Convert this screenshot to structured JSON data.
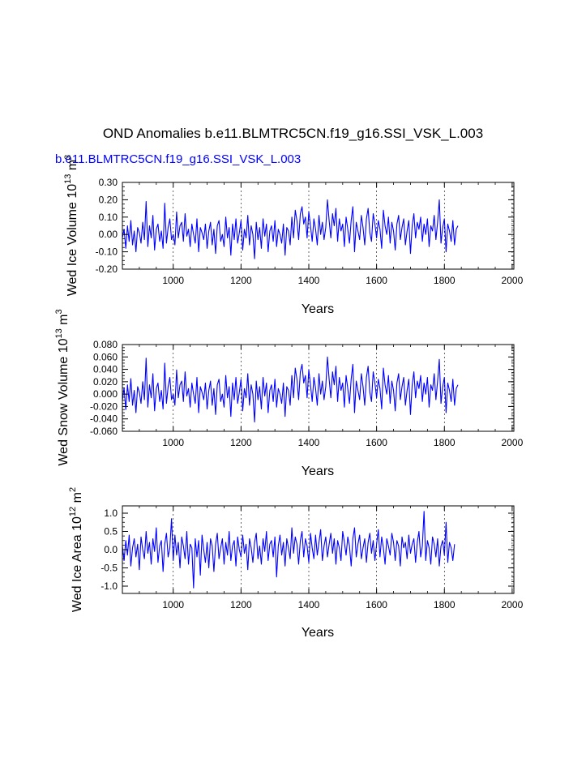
{
  "figure": {
    "title": "OND Anomalies b.e11.BLMTRC5CN.f19_g16.SSI_VSK_L.003",
    "subtitle": "b.e11.BLMTRC5CN.f19_g16.SSI_VSK_L.003",
    "line_color": "#0000ff"
  },
  "chart_data": [
    {
      "type": "line",
      "title": "",
      "xlabel": "Years",
      "ylabel": {
        "base": "Wed Ice Volume 10",
        "exp1": "13",
        "unit": " m",
        "exp2": "3"
      },
      "xlim": [
        850,
        2005
      ],
      "ylim": [
        -0.2,
        0.3
      ],
      "xticks": [
        1000,
        1200,
        1400,
        1600,
        1800,
        2000
      ],
      "xtick_labels": [
        "1000",
        "1200",
        "1400",
        "1600",
        "1800",
        "2000"
      ],
      "yticks": [
        -0.2,
        -0.1,
        0.0,
        0.1,
        0.2,
        0.3
      ],
      "ytick_labels": [
        "-0.20",
        "-0.10",
        "0.00",
        "0.10",
        "0.20",
        "0.30"
      ],
      "grid": "vertical dashed at major x ticks",
      "series": [
        {
          "name": "Wed Ice Volume",
          "x_start": 850,
          "x_step": 5,
          "values": [
            -0.02,
            0.03,
            -0.08,
            0.05,
            -0.04,
            0.08,
            -0.06,
            0.02,
            -0.1,
            0.04,
            0.01,
            -0.05,
            0.07,
            -0.03,
            0.19,
            -0.07,
            0.05,
            -0.02,
            0.11,
            -0.09,
            0.03,
            0.06,
            -0.04,
            0.02,
            -0.08,
            0.18,
            -0.05,
            0.04,
            0.09,
            -0.03,
            0.0,
            -0.06,
            0.13,
            -0.02,
            0.05,
            0.07,
            -0.04,
            0.12,
            -0.01,
            0.03,
            -0.07,
            0.06,
            0.0,
            -0.05,
            0.09,
            -0.1,
            0.04,
            0.01,
            -0.03,
            0.06,
            -0.08,
            0.02,
            0.07,
            -0.06,
            0.03,
            -0.11,
            0.05,
            0.08,
            -0.04,
            0.0,
            -0.07,
            0.1,
            -0.02,
            0.04,
            -0.12,
            0.06,
            -0.03,
            0.09,
            -0.05,
            0.01,
            0.08,
            -0.09,
            0.03,
            -0.02,
            0.11,
            -0.06,
            0.05,
            0.0,
            -0.14,
            0.07,
            -0.03,
            0.04,
            -0.08,
            0.09,
            -0.01,
            0.06,
            -0.1,
            0.02,
            0.05,
            -0.04,
            0.08,
            -0.07,
            0.03,
            0.0,
            -0.05,
            0.06,
            -0.12,
            0.04,
            0.02,
            -0.06,
            0.1,
            -0.02,
            0.14,
            0.08,
            -0.03,
            0.12,
            0.16,
            0.06,
            0.1,
            -0.02,
            0.13,
            0.05,
            -0.04,
            0.09,
            0.03,
            -0.06,
            0.11,
            0.0,
            0.07,
            -0.03,
            0.04,
            0.2,
            0.08,
            -0.02,
            0.12,
            0.05,
            0.15,
            -0.04,
            0.09,
            0.02,
            0.06,
            -0.07,
            0.1,
            0.03,
            -0.05,
            0.08,
            0.16,
            -0.1,
            0.07,
            0.02,
            -0.03,
            0.11,
            0.04,
            -0.06,
            0.09,
            0.15,
            0.01,
            -0.04,
            0.12,
            0.06,
            -0.02,
            0.08,
            0.03,
            -0.08,
            0.14,
            0.05,
            0.0,
            0.1,
            -0.05,
            0.07,
            0.02,
            -0.09,
            0.06,
            0.11,
            -0.03,
            0.04,
            0.09,
            -0.06,
            0.02,
            0.08,
            -0.11,
            0.05,
            0.12,
            -0.02,
            0.07,
            0.03,
            0.1,
            -0.04,
            0.06,
            0.0,
            0.09,
            -0.07,
            0.05,
            0.02,
            0.11,
            -0.03,
            0.07,
            0.2,
            -0.05,
            0.04,
            0.09,
            -0.1,
            0.06,
            0.02,
            -0.04,
            0.08,
            -0.06,
            0.03,
            0.05
          ]
        }
      ]
    },
    {
      "type": "line",
      "title": "",
      "xlabel": "Years",
      "ylabel": {
        "base": "Wed Snow Volume 10",
        "exp1": "13",
        "unit": " m",
        "exp2": "3"
      },
      "xlim": [
        850,
        2005
      ],
      "ylim": [
        -0.06,
        0.08
      ],
      "xticks": [
        1000,
        1200,
        1400,
        1600,
        1800,
        2000
      ],
      "xtick_labels": [
        "1000",
        "1200",
        "1400",
        "1600",
        "1800",
        "2000"
      ],
      "yticks": [
        -0.06,
        -0.04,
        -0.02,
        0.0,
        0.02,
        0.04,
        0.06,
        0.08
      ],
      "ytick_labels": [
        "-0.060",
        "-0.040",
        "-0.020",
        "0.000",
        "0.020",
        "0.040",
        "0.060",
        "0.080"
      ],
      "grid": "vertical dashed at major x ticks",
      "series": [
        {
          "name": "Wed Snow Volume",
          "x_start": 850,
          "x_step": 5,
          "values": [
            -0.01,
            0.01,
            -0.025,
            0.015,
            -0.012,
            0.025,
            -0.018,
            0.006,
            -0.03,
            0.012,
            0.003,
            -0.015,
            0.02,
            -0.009,
            0.058,
            -0.021,
            0.015,
            -0.006,
            0.033,
            -0.027,
            0.009,
            0.018,
            -0.012,
            0.006,
            -0.024,
            0.05,
            -0.015,
            0.012,
            0.027,
            -0.009,
            0.0,
            -0.018,
            0.039,
            -0.006,
            0.015,
            0.021,
            -0.012,
            0.036,
            -0.003,
            0.009,
            -0.021,
            0.018,
            0.0,
            -0.015,
            0.027,
            -0.03,
            0.012,
            0.003,
            -0.009,
            0.018,
            -0.024,
            0.006,
            0.021,
            -0.018,
            0.009,
            -0.033,
            0.015,
            0.024,
            -0.012,
            0.0,
            -0.021,
            0.03,
            -0.006,
            0.012,
            -0.036,
            0.018,
            -0.009,
            0.027,
            -0.015,
            0.003,
            0.024,
            -0.027,
            0.009,
            -0.006,
            0.033,
            -0.018,
            0.015,
            0.0,
            -0.045,
            0.021,
            -0.009,
            0.012,
            -0.024,
            0.027,
            -0.003,
            0.018,
            -0.03,
            0.006,
            0.015,
            -0.012,
            0.024,
            -0.021,
            0.009,
            0.0,
            -0.015,
            0.018,
            -0.036,
            0.012,
            0.006,
            -0.018,
            0.03,
            -0.006,
            0.042,
            0.024,
            -0.009,
            0.036,
            0.048,
            0.018,
            0.03,
            -0.006,
            0.039,
            0.015,
            -0.012,
            0.027,
            0.009,
            -0.018,
            0.033,
            0.0,
            0.021,
            -0.009,
            0.012,
            0.06,
            0.024,
            -0.006,
            0.036,
            0.015,
            0.045,
            -0.012,
            0.027,
            0.006,
            0.018,
            -0.021,
            0.03,
            0.009,
            -0.015,
            0.024,
            0.048,
            -0.03,
            0.021,
            0.006,
            -0.009,
            0.033,
            0.012,
            -0.018,
            0.027,
            0.045,
            0.003,
            -0.012,
            0.036,
            0.018,
            -0.006,
            0.024,
            0.009,
            -0.024,
            0.042,
            0.015,
            0.0,
            0.03,
            -0.015,
            0.021,
            0.006,
            -0.027,
            0.018,
            0.033,
            -0.009,
            0.012,
            0.027,
            -0.018,
            0.006,
            0.024,
            -0.033,
            0.015,
            0.036,
            -0.006,
            0.021,
            0.009,
            0.03,
            -0.012,
            0.018,
            0.0,
            0.027,
            -0.021,
            0.015,
            0.006,
            0.033,
            -0.009,
            0.021,
            0.056,
            -0.015,
            0.012,
            0.027,
            -0.03,
            0.018,
            0.006,
            -0.012,
            0.024,
            -0.018,
            0.009,
            0.015
          ]
        }
      ]
    },
    {
      "type": "line",
      "title": "",
      "xlabel": "Years",
      "ylabel": {
        "base": "Wed Ice Area 10",
        "exp1": "12",
        "unit": " m",
        "exp2": "2"
      },
      "xlim": [
        850,
        2005
      ],
      "ylim": [
        -1.2,
        1.2
      ],
      "xticks": [
        1000,
        1200,
        1400,
        1600,
        1800,
        2000
      ],
      "xtick_labels": [
        "1000",
        "1200",
        "1400",
        "1600",
        "1800",
        "2000"
      ],
      "yticks": [
        -1.0,
        -0.5,
        0.0,
        0.5,
        1.0
      ],
      "ytick_labels": [
        "-1.0",
        "-0.5",
        "0.0",
        "0.5",
        "1.0"
      ],
      "grid": "vertical dashed at major x ticks",
      "series": [
        {
          "name": "Wed Ice Area",
          "x_start": 850,
          "x_step": 5,
          "values": [
            0.1,
            -0.3,
            0.25,
            -0.15,
            0.4,
            -0.45,
            0.05,
            0.3,
            -0.2,
            0.15,
            -0.55,
            0.35,
            0.0,
            -0.25,
            0.5,
            -0.1,
            0.2,
            -0.4,
            0.3,
            -0.05,
            0.6,
            -0.35,
            0.1,
            0.25,
            -0.6,
            0.15,
            0.45,
            -0.2,
            0.05,
            0.85,
            -0.3,
            0.4,
            -0.15,
            0.2,
            -0.5,
            0.35,
            0.1,
            -0.25,
            0.5,
            -0.4,
            0.15,
            0.05,
            -1.05,
            0.3,
            -0.2,
            0.25,
            -0.7,
            0.4,
            0.0,
            -0.35,
            0.2,
            -0.5,
            0.3,
            0.1,
            -0.6,
            0.15,
            0.45,
            -0.25,
            0.05,
            0.3,
            -0.4,
            0.2,
            -0.15,
            0.5,
            -0.3,
            0.1,
            0.25,
            -0.45,
            0.35,
            0.0,
            -0.2,
            0.4,
            -0.1,
            0.15,
            -0.55,
            0.3,
            0.05,
            -0.35,
            0.2,
            0.45,
            -0.25,
            0.1,
            -0.4,
            0.3,
            -0.05,
            0.5,
            -0.3,
            0.15,
            0.25,
            -0.2,
            0.35,
            -0.75,
            0.1,
            0.4,
            -0.15,
            0.2,
            -0.45,
            0.3,
            0.05,
            -0.25,
            0.6,
            -0.1,
            0.35,
            0.15,
            -0.4,
            0.25,
            0.5,
            -0.2,
            0.3,
            0.1,
            -0.35,
            0.45,
            0.05,
            -0.25,
            0.4,
            -0.15,
            0.2,
            0.55,
            -0.3,
            0.1,
            0.35,
            -0.2,
            0.15,
            0.45,
            -0.1,
            0.3,
            -0.4,
            0.25,
            0.05,
            -0.3,
            0.5,
            0.2,
            -0.15,
            0.35,
            0.1,
            -0.45,
            0.3,
            0.6,
            -0.2,
            0.15,
            0.4,
            -0.25,
            0.05,
            0.3,
            -0.35,
            0.2,
            0.45,
            -0.1,
            0.25,
            -0.3,
            0.15,
            0.55,
            -0.2,
            0.35,
            0.05,
            -0.4,
            0.3,
            0.1,
            -0.15,
            0.45,
            0.2,
            -0.3,
            0.25,
            0.1,
            -0.45,
            0.35,
            0.05,
            0.2,
            -0.25,
            0.4,
            -0.1,
            0.15,
            0.3,
            -0.35,
            0.2,
            0.5,
            -0.2,
            0.1,
            1.05,
            -0.3,
            0.25,
            0.05,
            -0.4,
            0.35,
            0.15,
            -0.2,
            0.3,
            -0.45,
            0.1,
            0.25,
            -0.15,
            0.75,
            -0.35,
            0.2,
            0.05,
            -0.3,
            0.15
          ]
        }
      ]
    }
  ]
}
